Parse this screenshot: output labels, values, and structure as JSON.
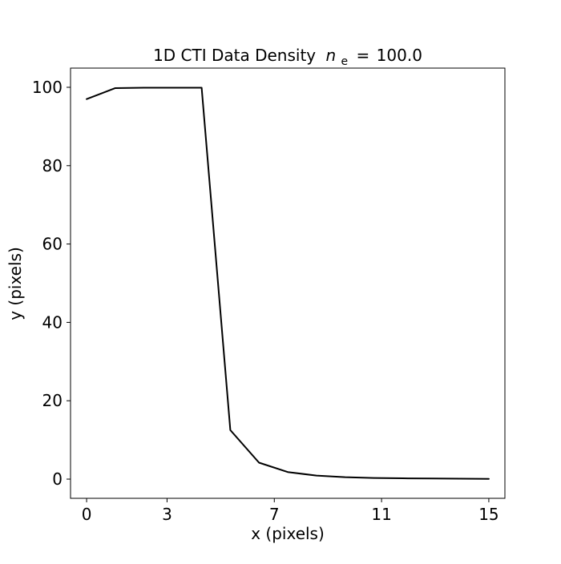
{
  "chart_data": {
    "type": "line",
    "title": "1D CTI Data Density",
    "title_math": {
      "symbol": "n",
      "subscript": "e",
      "relation": "=",
      "value": "100.0"
    },
    "xlabel": "x (pixels)",
    "ylabel": "y (pixels)",
    "xlim": [
      -0.6,
      15.6
    ],
    "ylim": [
      -4.9,
      104.9
    ],
    "xticks": [
      0,
      3,
      7,
      11,
      15
    ],
    "xtick_labels": [
      "0",
      "3",
      "7",
      "11",
      "15"
    ],
    "yticks": [
      0,
      20,
      40,
      60,
      80,
      100
    ],
    "ytick_labels": [
      "0",
      "20",
      "40",
      "60",
      "80",
      "100"
    ],
    "grid": false,
    "legend": "none",
    "series": [
      {
        "color": "#000000",
        "x": [
          0,
          1.07,
          2.14,
          3.21,
          4.29,
          5.36,
          6.43,
          7.5,
          8.57,
          9.64,
          10.71,
          11.79,
          12.86,
          13.93,
          15
        ],
        "y": [
          97.0,
          99.8,
          99.9,
          99.9,
          99.9,
          12.5,
          4.2,
          1.8,
          0.9,
          0.5,
          0.3,
          0.2,
          0.15,
          0.1,
          0.05
        ]
      }
    ]
  }
}
